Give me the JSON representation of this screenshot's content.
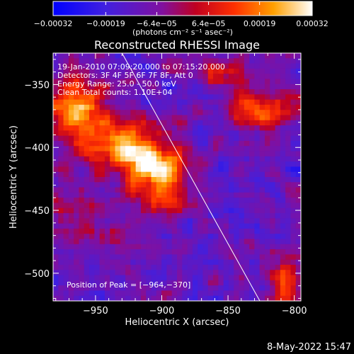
{
  "chart_data": {
    "type": "heatmap",
    "title": "Reconstructed RHESSI Image",
    "xlabel": "Heliocentric X (arcsec)",
    "ylabel": "Heliocentric Y (arcsec)",
    "xlim": [
      -982,
      -795
    ],
    "ylim": [
      -522,
      -325
    ],
    "xticks": [
      -950,
      -900,
      -850,
      -800
    ],
    "yticks": [
      -350,
      -400,
      -450,
      -500
    ],
    "xtick_labels": [
      "−950",
      "−900",
      "−850",
      "−800"
    ],
    "ytick_labels": [
      "−350",
      "−400",
      "−450",
      "−500"
    ],
    "annotations": [
      "19-Jan-2010 07:09:20.000 to 07:15:20.000",
      "Detectors: 3F 4F 5F 6F 7F 8F, Att 0",
      "Energy Range: 25.0 - 50.0 keV",
      "Clean    Total counts: 1.10E+04"
    ],
    "peak_label": "Position of Peak = [−964,−370]",
    "peak_position": [
      -964,
      -370
    ],
    "limb_line": [
      [
        -930,
        -325
      ],
      [
        -826,
        -522
      ]
    ],
    "colorbar": {
      "ticks": [
        -0.00032,
        -0.00019,
        -6.4e-05,
        6.4e-05,
        0.00019,
        0.00032
      ],
      "tick_labels": [
        "−0.00032",
        "−0.00019",
        "−6.4e−05",
        "6.4e−05",
        "0.00019",
        "0.00032"
      ],
      "units_label": "(photons cm⁻² s⁻¹ asec⁻²)",
      "range": [
        -0.00032,
        0.00032
      ],
      "colors": [
        "#0000ff",
        "#6020c0",
        "#a00040",
        "#e01010",
        "#ff6000",
        "#ffc000",
        "#ffffff"
      ]
    },
    "sources": [
      {
        "x": -965,
        "y": -368,
        "amp": 0.00032,
        "sx": 16,
        "sy": 16
      },
      {
        "x": -935,
        "y": -395,
        "amp": 0.00027,
        "sx": 18,
        "sy": 13
      },
      {
        "x": -905,
        "y": -418,
        "amp": 0.00029,
        "sx": 16,
        "sy": 13
      },
      {
        "x": -895,
        "y": -440,
        "amp": 0.0002,
        "sx": 14,
        "sy": 10
      },
      {
        "x": -918,
        "y": -405,
        "amp": 0.00018,
        "sx": 20,
        "sy": 12
      },
      {
        "x": -830,
        "y": -370,
        "amp": 0.00022,
        "sx": 14,
        "sy": 10
      },
      {
        "x": -808,
        "y": -370,
        "amp": 0.00015,
        "sx": 10,
        "sy": 12
      },
      {
        "x": -860,
        "y": -340,
        "amp": 0.00014,
        "sx": 18,
        "sy": 8
      },
      {
        "x": -805,
        "y": -505,
        "amp": 0.0002,
        "sx": 8,
        "sy": 14
      },
      {
        "x": -975,
        "y": -450,
        "amp": 0.00012,
        "sx": 10,
        "sy": 20
      },
      {
        "x": -940,
        "y": -470,
        "amp": 8e-05,
        "sx": 14,
        "sy": 14
      }
    ],
    "baseline": -0.00011,
    "noise": 9e-05
  },
  "footer": {
    "date": "8-May-2022 15:47"
  }
}
